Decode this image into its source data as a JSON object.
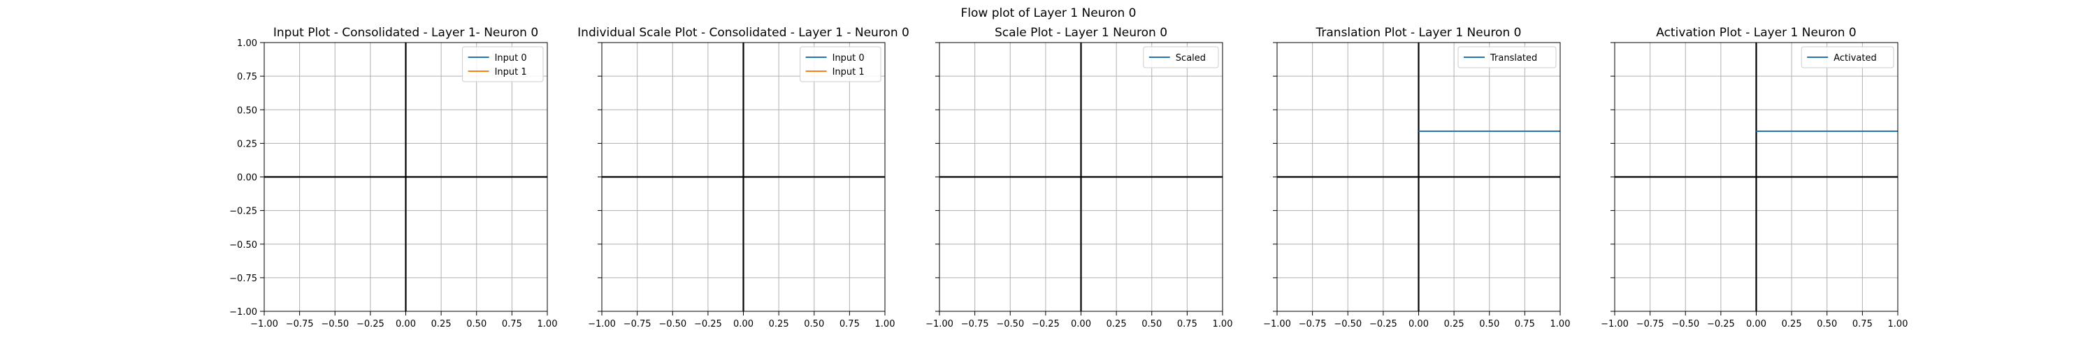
{
  "figure": {
    "suptitle": "Flow plot of Layer 1 Neuron 0"
  },
  "colors": {
    "series_blue": "#1f77b4",
    "series_orange": "#ff7f0e",
    "grid": "#b0b0b0",
    "axis_line": "#000000"
  },
  "chart_data": [
    {
      "type": "line",
      "title": "Input Plot - Consolidated - Layer 1- Neuron 0",
      "xlim": [
        -1,
        1
      ],
      "ylim": [
        -1,
        1
      ],
      "xticks": [
        -1.0,
        -0.75,
        -0.5,
        -0.25,
        0.0,
        0.25,
        0.5,
        0.75,
        1.0
      ],
      "yticks": [
        -1.0,
        -0.75,
        -0.5,
        -0.25,
        0.0,
        0.25,
        0.5,
        0.75,
        1.0
      ],
      "xticklabels": [
        "−1.00",
        "−0.75",
        "−0.50",
        "−0.25",
        "0.00",
        "0.25",
        "0.50",
        "0.75",
        "1.00"
      ],
      "yticklabels": [
        "−1.00",
        "−0.75",
        "−0.50",
        "−0.25",
        "0.00",
        "0.25",
        "0.50",
        "0.75",
        "1.00"
      ],
      "show_ytick_labels": true,
      "grid": true,
      "legend": "upper-right",
      "series": [
        {
          "name": "Input 0",
          "color": "#1f77b4",
          "x": [],
          "y": []
        },
        {
          "name": "Input 1",
          "color": "#ff7f0e",
          "x": [],
          "y": []
        }
      ]
    },
    {
      "type": "line",
      "title": "Individual Scale Plot - Consolidated - Layer 1 - Neuron 0",
      "xlim": [
        -1,
        1
      ],
      "ylim": [
        -1,
        1
      ],
      "xticks": [
        -1.0,
        -0.75,
        -0.5,
        -0.25,
        0.0,
        0.25,
        0.5,
        0.75,
        1.0
      ],
      "yticks": [
        -1.0,
        -0.75,
        -0.5,
        -0.25,
        0.0,
        0.25,
        0.5,
        0.75,
        1.0
      ],
      "xticklabels": [
        "−1.00",
        "−0.75",
        "−0.50",
        "−0.25",
        "0.00",
        "0.25",
        "0.50",
        "0.75",
        "1.00"
      ],
      "yticklabels": [],
      "show_ytick_labels": false,
      "grid": true,
      "legend": "upper-right",
      "series": [
        {
          "name": "Input 0",
          "color": "#1f77b4",
          "x": [],
          "y": []
        },
        {
          "name": "Input 1",
          "color": "#ff7f0e",
          "x": [],
          "y": []
        }
      ]
    },
    {
      "type": "line",
      "title": "Scale Plot - Layer 1 Neuron 0",
      "xlim": [
        -1,
        1
      ],
      "ylim": [
        -1,
        1
      ],
      "xticks": [
        -1.0,
        -0.75,
        -0.5,
        -0.25,
        0.0,
        0.25,
        0.5,
        0.75,
        1.0
      ],
      "yticks": [
        -1.0,
        -0.75,
        -0.5,
        -0.25,
        0.0,
        0.25,
        0.5,
        0.75,
        1.0
      ],
      "xticklabels": [
        "−1.00",
        "−0.75",
        "−0.50",
        "−0.25",
        "0.00",
        "0.25",
        "0.50",
        "0.75",
        "1.00"
      ],
      "yticklabels": [],
      "show_ytick_labels": false,
      "grid": true,
      "legend": "upper-right",
      "series": [
        {
          "name": "Scaled",
          "color": "#1f77b4",
          "x": [],
          "y": []
        }
      ]
    },
    {
      "type": "line",
      "title": "Translation Plot - Layer 1 Neuron 0",
      "xlim": [
        -1,
        1
      ],
      "ylim": [
        -1,
        1
      ],
      "xticks": [
        -1.0,
        -0.75,
        -0.5,
        -0.25,
        0.0,
        0.25,
        0.5,
        0.75,
        1.0
      ],
      "yticks": [
        -1.0,
        -0.75,
        -0.5,
        -0.25,
        0.0,
        0.25,
        0.5,
        0.75,
        1.0
      ],
      "xticklabels": [
        "−1.00",
        "−0.75",
        "−0.50",
        "−0.25",
        "0.00",
        "0.25",
        "0.50",
        "0.75",
        "1.00"
      ],
      "yticklabels": [],
      "show_ytick_labels": false,
      "grid": true,
      "legend": "upper-right",
      "series": [
        {
          "name": "Translated",
          "color": "#1f77b4",
          "x": [
            0.0,
            1.0
          ],
          "y": [
            0.34,
            0.34
          ]
        }
      ]
    },
    {
      "type": "line",
      "title": "Activation Plot - Layer 1 Neuron 0",
      "xlim": [
        -1,
        1
      ],
      "ylim": [
        -1,
        1
      ],
      "xticks": [
        -1.0,
        -0.75,
        -0.5,
        -0.25,
        0.0,
        0.25,
        0.5,
        0.75,
        1.0
      ],
      "yticks": [
        -1.0,
        -0.75,
        -0.5,
        -0.25,
        0.0,
        0.25,
        0.5,
        0.75,
        1.0
      ],
      "xticklabels": [
        "−1.00",
        "−0.75",
        "−0.50",
        "−0.25",
        "0.00",
        "0.25",
        "0.50",
        "0.75",
        "1.00"
      ],
      "yticklabels": [],
      "show_ytick_labels": false,
      "grid": true,
      "legend": "upper-right",
      "series": [
        {
          "name": "Activated",
          "color": "#1f77b4",
          "x": [
            0.0,
            1.0
          ],
          "y": [
            0.34,
            0.34
          ]
        }
      ]
    }
  ]
}
